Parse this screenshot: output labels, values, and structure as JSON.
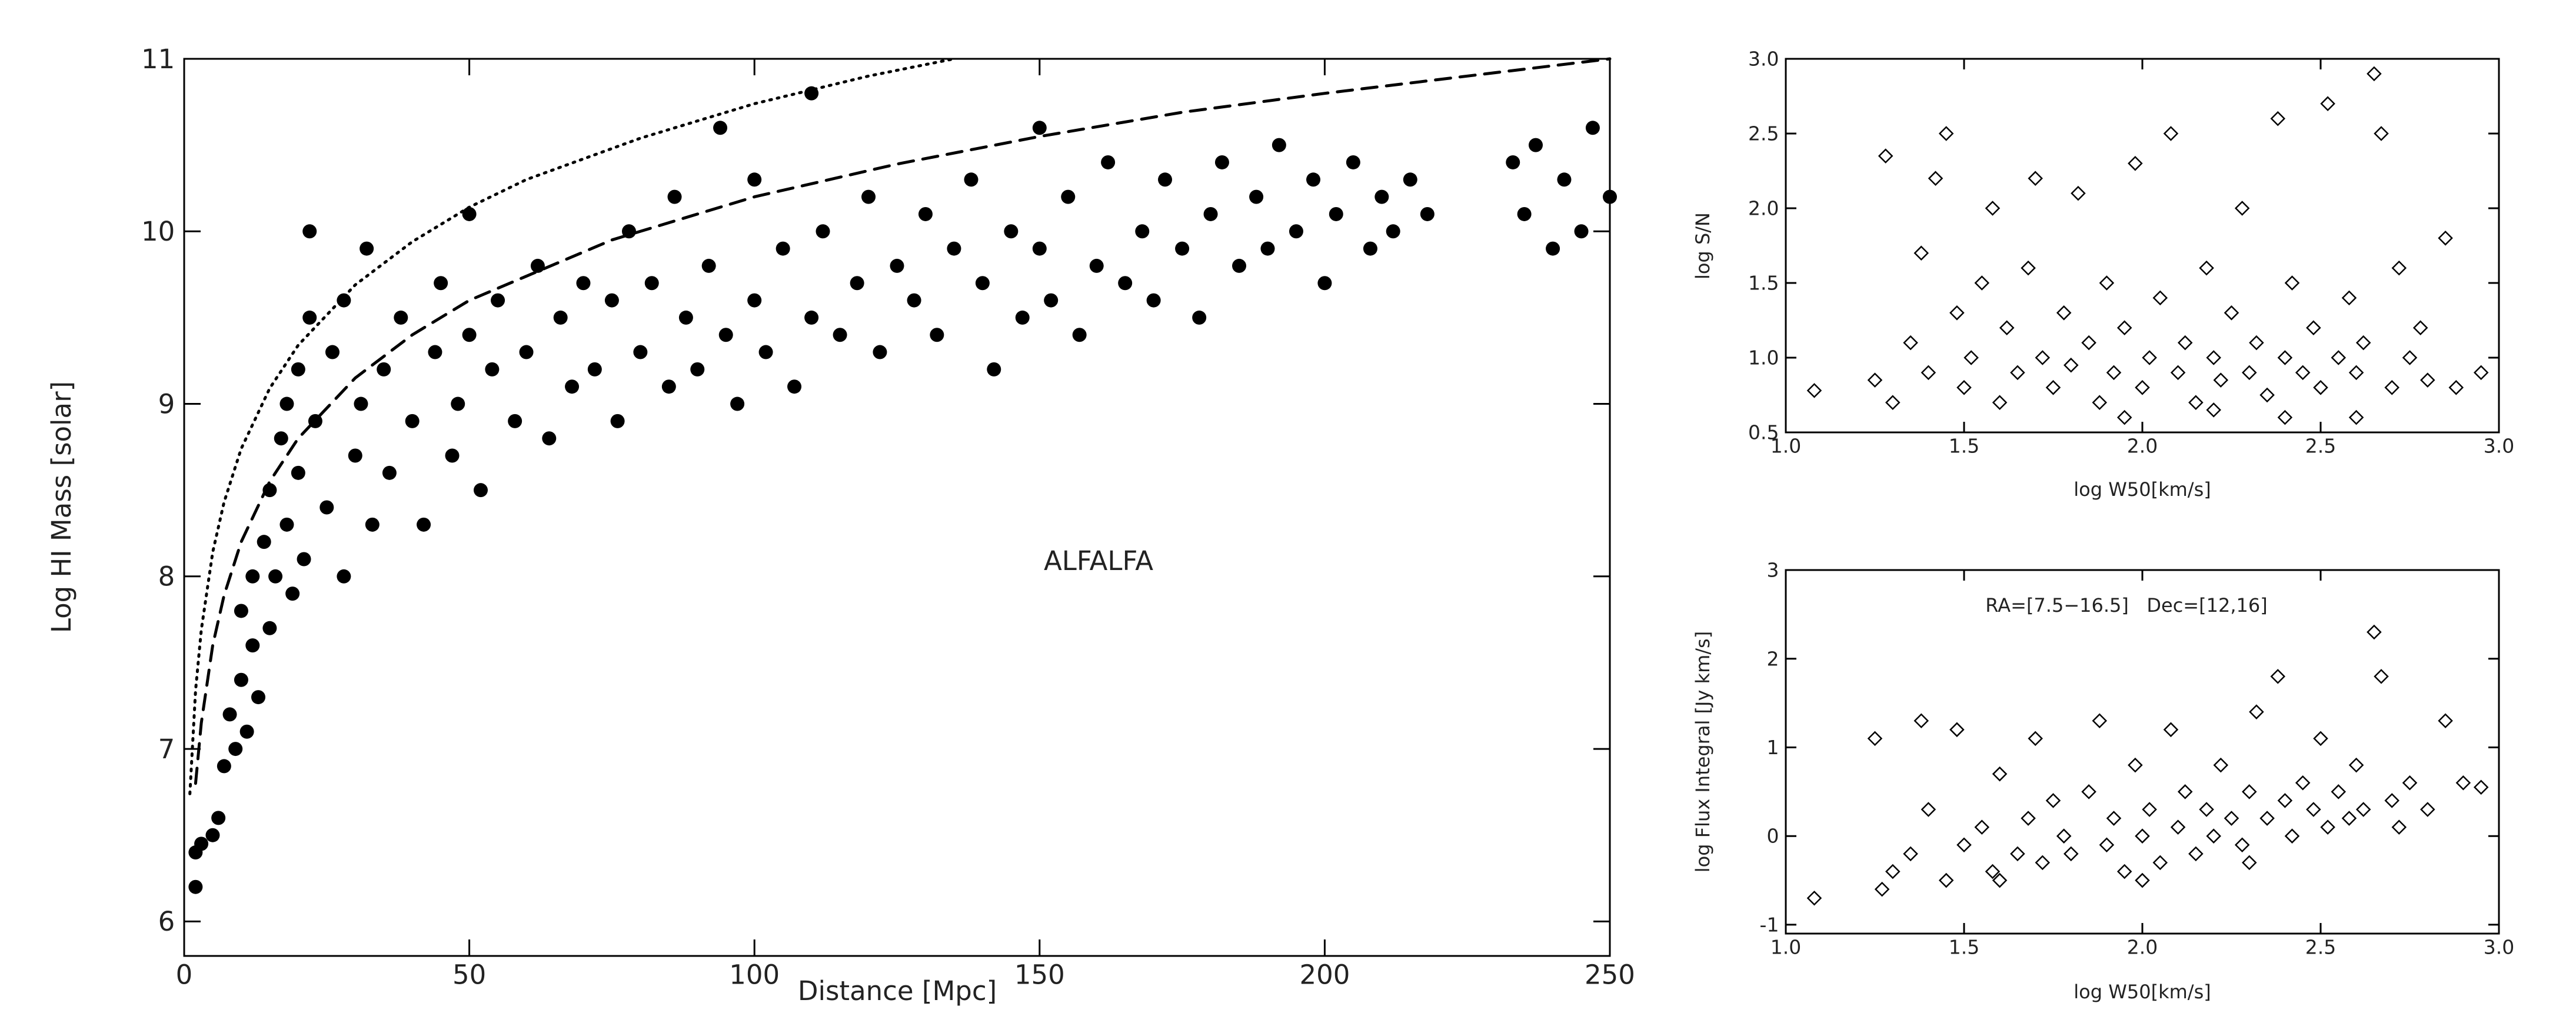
{
  "chart_data": [
    {
      "type": "scatter",
      "x_label": "Distance [Mpc]",
      "y_label": "Log HI Mass [solar]",
      "annotation": "ALFALFA",
      "xlim": [
        0,
        250
      ],
      "ylim": [
        5.8,
        11
      ],
      "xticks": [
        0,
        50,
        100,
        150,
        200,
        250
      ],
      "yticks": [
        6,
        7,
        8,
        9,
        10,
        11
      ],
      "series": [
        {
          "marker": "filled-circle",
          "color": "#000000",
          "x": [
            2,
            2,
            3,
            5,
            6,
            7,
            8,
            9,
            10,
            10,
            11,
            12,
            12,
            13,
            14,
            15,
            15,
            16,
            17,
            18,
            18,
            19,
            20,
            20,
            21,
            22,
            22,
            23,
            25,
            26,
            28,
            28,
            30,
            31,
            32,
            33,
            35,
            36,
            38,
            40,
            42,
            44,
            45,
            47,
            48,
            50,
            50,
            52,
            54,
            55,
            58,
            60,
            62,
            64,
            66,
            68,
            70,
            72,
            75,
            76,
            78,
            80,
            82,
            85,
            86,
            88,
            90,
            92,
            94,
            95,
            97,
            100,
            100,
            102,
            105,
            107,
            110,
            110,
            112,
            115,
            118,
            120,
            122,
            125,
            128,
            130,
            132,
            135,
            138,
            140,
            142,
            145,
            147,
            150,
            150,
            152,
            155,
            157,
            160,
            162,
            165,
            168,
            170,
            172,
            175,
            178,
            180,
            182,
            185,
            188,
            190,
            192,
            195,
            198,
            200,
            202,
            205,
            208,
            210,
            212,
            215,
            218,
            233,
            235,
            237,
            240,
            242,
            245,
            247,
            250
          ],
          "y": [
            6.2,
            6.4,
            6.45,
            6.5,
            6.6,
            6.9,
            7.2,
            7.0,
            7.4,
            7.8,
            7.1,
            7.6,
            8.0,
            7.3,
            8.2,
            7.7,
            8.5,
            8.0,
            8.8,
            8.3,
            9.0,
            7.9,
            8.6,
            9.2,
            8.1,
            9.5,
            10.0,
            8.9,
            8.4,
            9.3,
            8.0,
            9.6,
            8.7,
            9.0,
            9.9,
            8.3,
            9.2,
            8.6,
            9.5,
            8.9,
            8.3,
            9.3,
            9.7,
            8.7,
            9.0,
            9.4,
            10.1,
            8.5,
            9.2,
            9.6,
            8.9,
            9.3,
            9.8,
            8.8,
            9.5,
            9.1,
            9.7,
            9.2,
            9.6,
            8.9,
            10.0,
            9.3,
            9.7,
            9.1,
            10.2,
            9.5,
            9.2,
            9.8,
            10.6,
            9.4,
            9.0,
            9.6,
            10.3,
            9.3,
            9.9,
            9.1,
            9.5,
            10.8,
            10.0,
            9.4,
            9.7,
            10.2,
            9.3,
            9.8,
            9.6,
            10.1,
            9.4,
            9.9,
            10.3,
            9.7,
            9.2,
            10.0,
            9.5,
            9.9,
            10.6,
            9.6,
            10.2,
            9.4,
            9.8,
            10.4,
            9.7,
            10.0,
            9.6,
            10.3,
            9.9,
            9.5,
            10.1,
            10.4,
            9.8,
            10.2,
            9.9,
            10.5,
            10.0,
            10.3,
            9.7,
            10.1,
            10.4,
            9.9,
            10.2,
            10.0,
            10.3,
            10.1,
            10.4,
            10.1,
            10.5,
            9.9,
            10.3,
            10.0,
            10.6,
            10.2
          ]
        },
        {
          "line_style": "dotted",
          "color": "#000000",
          "x": [
            1,
            2,
            3,
            5,
            7,
            10,
            15,
            20,
            30,
            40,
            50,
            60,
            80,
            100,
            120,
            135
          ],
          "y": [
            6.74,
            7.34,
            7.69,
            8.14,
            8.43,
            8.74,
            9.09,
            9.34,
            9.69,
            9.94,
            10.14,
            10.3,
            10.54,
            10.74,
            10.9,
            11.0
          ]
        },
        {
          "line_style": "dashed",
          "color": "#000000",
          "x": [
            2,
            3,
            5,
            7,
            10,
            15,
            20,
            30,
            40,
            50,
            75,
            100,
            125,
            150,
            175,
            200,
            225,
            250
          ],
          "y": [
            6.8,
            7.15,
            7.6,
            7.89,
            8.2,
            8.55,
            8.8,
            9.15,
            9.4,
            9.6,
            9.95,
            10.2,
            10.39,
            10.55,
            10.69,
            10.8,
            10.9,
            11.0
          ]
        }
      ]
    },
    {
      "type": "scatter",
      "x_label": "log W50[km/s]",
      "y_label": "log S/N",
      "xlim": [
        1,
        3
      ],
      "ylim": [
        0.5,
        3
      ],
      "xticks": [
        {
          "value": 1,
          "label": "1.0"
        },
        1.5,
        {
          "value": 2,
          "label": "2.0"
        },
        2.5,
        {
          "value": 3,
          "label": "3.0"
        }
      ],
      "yticks": [
        0.5,
        {
          "value": 1,
          "label": "1.0"
        },
        1.5,
        {
          "value": 2,
          "label": "2.0"
        },
        2.5,
        {
          "value": 3,
          "label": "3.0"
        }
      ],
      "series": [
        {
          "marker": "open-diamond",
          "color": "#000000",
          "x": [
            1.08,
            1.25,
            1.28,
            1.3,
            1.35,
            1.38,
            1.4,
            1.42,
            1.45,
            1.48,
            1.5,
            1.52,
            1.55,
            1.58,
            1.6,
            1.62,
            1.65,
            1.68,
            1.7,
            1.72,
            1.75,
            1.78,
            1.8,
            1.82,
            1.85,
            1.88,
            1.9,
            1.92,
            1.95,
            1.98,
            2.0,
            2.02,
            2.05,
            2.08,
            2.1,
            2.12,
            2.15,
            2.18,
            2.2,
            2.22,
            2.25,
            2.28,
            2.3,
            2.32,
            2.35,
            2.38,
            2.4,
            2.42,
            2.45,
            2.48,
            2.5,
            2.52,
            2.55,
            2.58,
            2.6,
            2.62,
            2.65,
            2.67,
            2.7,
            2.72,
            2.75,
            2.78,
            2.8,
            2.85,
            2.88,
            2.95,
            2.2,
            2.4,
            1.95,
            2.6
          ],
          "y": [
            0.78,
            0.85,
            2.35,
            0.7,
            1.1,
            1.7,
            0.9,
            2.2,
            2.5,
            1.3,
            0.8,
            1.0,
            1.5,
            2.0,
            0.7,
            1.2,
            0.9,
            1.6,
            2.2,
            1.0,
            0.8,
            1.3,
            0.95,
            2.1,
            1.1,
            0.7,
            1.5,
            0.9,
            1.2,
            2.3,
            0.8,
            1.0,
            1.4,
            2.5,
            0.9,
            1.1,
            0.7,
            1.6,
            1.0,
            0.85,
            1.3,
            2.0,
            0.9,
            1.1,
            0.75,
            2.6,
            1.0,
            1.5,
            0.9,
            1.2,
            0.8,
            2.7,
            1.0,
            1.4,
            0.9,
            1.1,
            2.9,
            2.5,
            0.8,
            1.6,
            1.0,
            1.2,
            0.85,
            1.8,
            0.8,
            0.9,
            0.65,
            0.6,
            0.6,
            0.6
          ]
        }
      ]
    },
    {
      "type": "scatter",
      "x_label": "log W50[km/s]",
      "y_label": "log Flux Integral [Jy km/s]",
      "annotation": "RA=[7.5−16.5]   Dec=[12,16]",
      "xlim": [
        1,
        3
      ],
      "ylim": [
        -1.1,
        3
      ],
      "xticks": [
        {
          "value": 1,
          "label": "1.0"
        },
        1.5,
        {
          "value": 2,
          "label": "2.0"
        },
        2.5,
        {
          "value": 3,
          "label": "3.0"
        }
      ],
      "yticks": [
        -1,
        0,
        1,
        2,
        3
      ],
      "series": [
        {
          "marker": "open-diamond",
          "color": "#000000",
          "x": [
            1.08,
            1.25,
            1.27,
            1.3,
            1.35,
            1.38,
            1.4,
            1.45,
            1.48,
            1.5,
            1.55,
            1.58,
            1.6,
            1.65,
            1.68,
            1.7,
            1.72,
            1.75,
            1.78,
            1.8,
            1.85,
            1.88,
            1.9,
            1.92,
            1.95,
            1.98,
            2.0,
            2.02,
            2.05,
            2.08,
            2.1,
            2.12,
            2.15,
            2.18,
            2.2,
            2.22,
            2.25,
            2.28,
            2.3,
            2.32,
            2.35,
            2.38,
            2.4,
            2.42,
            2.45,
            2.48,
            2.5,
            2.52,
            2.55,
            2.58,
            2.6,
            2.62,
            2.65,
            2.67,
            2.7,
            2.72,
            2.75,
            2.8,
            2.85,
            2.9,
            2.95,
            1.6,
            2.0,
            2.3
          ],
          "y": [
            -0.7,
            1.1,
            -0.6,
            -0.4,
            -0.2,
            1.3,
            0.3,
            -0.5,
            1.2,
            -0.1,
            0.1,
            -0.4,
            0.7,
            -0.2,
            0.2,
            1.1,
            -0.3,
            0.4,
            0.0,
            -0.2,
            0.5,
            1.3,
            -0.1,
            0.2,
            -0.4,
            0.8,
            0.0,
            0.3,
            -0.3,
            1.2,
            0.1,
            0.5,
            -0.2,
            0.3,
            0.0,
            0.8,
            0.2,
            -0.1,
            0.5,
            1.4,
            0.2,
            1.8,
            0.4,
            0.0,
            0.6,
            0.3,
            1.1,
            0.1,
            0.5,
            0.2,
            0.8,
            0.3,
            2.3,
            1.8,
            0.4,
            0.1,
            0.6,
            0.3,
            1.3,
            0.6,
            0.55,
            -0.5,
            -0.5,
            -0.3
          ]
        }
      ]
    }
  ]
}
